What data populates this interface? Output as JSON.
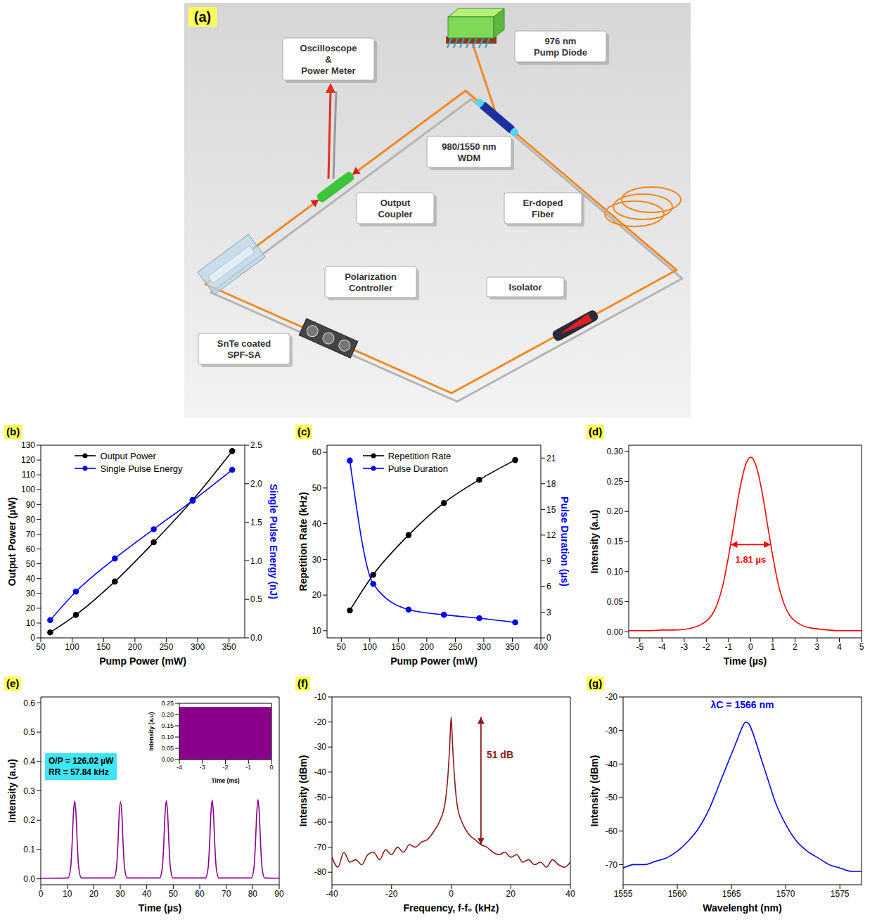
{
  "diagram": {
    "label": "(a)",
    "labels": [
      [
        "976 nm",
        "Pump Diode"
      ],
      [
        "Oscilloscope",
        "&",
        "Power Meter"
      ],
      [
        "980/1550 nm",
        "WDM"
      ],
      [
        "Output",
        "Coupler"
      ],
      [
        "Er-doped",
        "Fiber"
      ],
      [
        "SnTe coated",
        "SPF-SA"
      ],
      [
        "Polarization",
        "Controller"
      ],
      [
        "Isolator"
      ]
    ]
  },
  "chart_data": [
    {
      "panel": "(b)",
      "type": "line",
      "x_label": "Pump Power (mW)",
      "y_label": "Output Power (µW)",
      "y2_label": "Single Pulse Energy (nJ)",
      "x": [
        65,
        106,
        168,
        230,
        292,
        355
      ],
      "series": [
        {
          "name": "Output Power",
          "color": "#000000",
          "marker": "circle",
          "values": [
            3.7,
            15.5,
            38,
            64.5,
            93,
            126.02
          ]
        },
        {
          "name": "Single Pulse Energy",
          "color": "#0000ff",
          "marker": "circle",
          "axis": "y2",
          "values": [
            0.23,
            0.6,
            1.03,
            1.41,
            1.78,
            2.18
          ]
        }
      ],
      "xlim": [
        50,
        375
      ],
      "xticks": [
        50,
        100,
        150,
        200,
        250,
        300,
        350
      ],
      "ylim": [
        0,
        130
      ],
      "yticks": [
        0,
        10,
        20,
        30,
        40,
        50,
        60,
        70,
        80,
        90,
        100,
        110,
        120,
        130
      ],
      "y2lim": [
        0,
        2.5
      ],
      "y2ticks": [
        {
          "value": 0,
          "label": "0.0"
        },
        {
          "value": 0.5,
          "label": "0.5"
        },
        {
          "value": 1,
          "label": "1.0"
        },
        {
          "value": 1.5,
          "label": "1.5"
        },
        {
          "value": 2,
          "label": "2.0"
        },
        {
          "value": 2.5,
          "label": "2.5"
        }
      ],
      "legend": "upper left"
    },
    {
      "panel": "(c)",
      "type": "line",
      "x_label": "Pump Power (mW)",
      "y_label": "Repetition Rate (kHz)",
      "y2_label": "Pulse Duration (µs)",
      "x": [
        65,
        106,
        168,
        230,
        292,
        355
      ],
      "series": [
        {
          "name": "Repetition Rate",
          "color": "#000000",
          "marker": "circle",
          "values": [
            15.7,
            25.7,
            36.8,
            45.8,
            52.3,
            57.84
          ]
        },
        {
          "name": "Pulse Duration",
          "color": "#0000ff",
          "marker": "circle",
          "axis": "y2",
          "values": [
            20.7,
            6.3,
            3.3,
            2.7,
            2.3,
            1.81
          ]
        }
      ],
      "xlim": [
        25,
        400
      ],
      "xticks": [
        50,
        100,
        150,
        200,
        250,
        300,
        350,
        400
      ],
      "ylim": [
        8,
        62
      ],
      "yticks": [
        10,
        20,
        30,
        40,
        50,
        60
      ],
      "y2lim": [
        0,
        22.5
      ],
      "y2ticks": [
        0,
        3,
        6,
        9,
        12,
        15,
        18,
        21
      ],
      "legend": "upper left"
    },
    {
      "panel": "(d)",
      "type": "line",
      "x_label": "Time (µs)",
      "y_label": "Intensity (a.u)",
      "color": "#ff0000",
      "x": [
        -5.5,
        -5,
        -4.5,
        -4,
        -3.5,
        -3,
        -2.5,
        -2.25,
        -2,
        -1.75,
        -1.5,
        -1.25,
        -1,
        -0.75,
        -0.5,
        -0.25,
        0,
        0.25,
        0.5,
        0.75,
        1,
        1.25,
        1.5,
        1.75,
        2,
        2.25,
        2.5,
        3,
        3.5,
        4,
        4.5,
        5
      ],
      "values": [
        0.002,
        0.002,
        0.002,
        0.003,
        0.003,
        0.004,
        0.008,
        0.012,
        0.018,
        0.028,
        0.047,
        0.078,
        0.125,
        0.18,
        0.235,
        0.275,
        0.29,
        0.275,
        0.235,
        0.18,
        0.125,
        0.078,
        0.047,
        0.028,
        0.018,
        0.012,
        0.008,
        0.005,
        0.003,
        0.002,
        0.002,
        0.002
      ],
      "xlim": [
        -5.5,
        5
      ],
      "xticks": [
        -5,
        -4,
        -3,
        -2,
        -1,
        0,
        1,
        2,
        3,
        4,
        5
      ],
      "ylim": [
        -0.01,
        0.31
      ],
      "yticks": [
        {
          "value": 0,
          "label": "0.00"
        },
        {
          "value": 0.05,
          "label": "0.05"
        },
        {
          "value": 0.1,
          "label": "0.10"
        },
        {
          "value": 0.15,
          "label": "0.15"
        },
        {
          "value": 0.2,
          "label": "0.20"
        },
        {
          "value": 0.25,
          "label": "0.25"
        },
        {
          "value": 0.3,
          "label": "0.30"
        }
      ],
      "annotations": [
        {
          "text": "1.81 µs",
          "x": [
            -0.905,
            0.905
          ],
          "y": 0.145,
          "color": "#ff0000"
        }
      ]
    },
    {
      "panel": "(e)",
      "type": "line",
      "x_label": "Time (µs)",
      "y_label": "Intensity (a.u)",
      "color": "#8b008b",
      "x": [
        0,
        10.3,
        11.3,
        11.8,
        12.3,
        12.8,
        13.3,
        13.8,
        14.3,
        15.3,
        27.6,
        28.6,
        29.1,
        29.6,
        30.1,
        30.6,
        31.1,
        31.6,
        32.6,
        44.9,
        45.9,
        46.4,
        46.9,
        47.4,
        47.9,
        48.4,
        48.9,
        49.9,
        62.2,
        63.2,
        63.7,
        64.2,
        64.7,
        65.2,
        65.7,
        66.2,
        67.2,
        79.5,
        80.5,
        81.0,
        81.5,
        82.0,
        82.5,
        83.0,
        83.5,
        84.5,
        90
      ],
      "values": [
        0.002,
        0.003,
        0.04,
        0.115,
        0.22,
        0.265,
        0.22,
        0.115,
        0.04,
        0.003,
        0.003,
        0.04,
        0.115,
        0.22,
        0.263,
        0.22,
        0.115,
        0.04,
        0.003,
        0.003,
        0.04,
        0.115,
        0.22,
        0.266,
        0.22,
        0.115,
        0.04,
        0.003,
        0.003,
        0.04,
        0.115,
        0.22,
        0.268,
        0.22,
        0.115,
        0.04,
        0.003,
        0.003,
        0.04,
        0.115,
        0.22,
        0.27,
        0.22,
        0.115,
        0.04,
        0.003,
        0.002
      ],
      "xlim": [
        0,
        90
      ],
      "xticks": [
        0,
        10,
        20,
        30,
        40,
        50,
        60,
        70,
        80,
        90
      ],
      "ylim": [
        -0.02,
        0.62
      ],
      "yticks": [
        {
          "value": 0,
          "label": "0.0"
        },
        {
          "value": 0.1,
          "label": "0.1"
        },
        {
          "value": 0.2,
          "label": "0.2"
        },
        {
          "value": 0.3,
          "label": "0.3"
        },
        {
          "value": 0.4,
          "label": "0.4"
        },
        {
          "value": 0.5,
          "label": "0.5"
        },
        {
          "value": 0.6,
          "label": "0.6"
        }
      ],
      "text_box": [
        "O/P = 126.02 µW",
        "RR = 57.84 kHz"
      ],
      "inset": {
        "type": "area",
        "x_label": "Time (ms)",
        "y_label": "Intensity (a.u)",
        "color": "#8b008b",
        "x": [
          -4,
          0
        ],
        "values": [
          0.232,
          0.232
        ],
        "xlim": [
          -4,
          0
        ],
        "xticks": [
          -4,
          -3,
          -2,
          -1,
          0
        ],
        "ylim": [
          0,
          0.25
        ],
        "yticks": [
          {
            "value": 0,
            "label": "0.00"
          },
          {
            "value": 0.05,
            "label": "0.05"
          },
          {
            "value": 0.1,
            "label": "0.10"
          },
          {
            "value": 0.15,
            "label": "0.15"
          },
          {
            "value": 0.2,
            "label": "0.20"
          },
          {
            "value": 0.25,
            "label": "0.25"
          }
        ]
      }
    },
    {
      "panel": "(f)",
      "type": "line",
      "x_label": "Frequency, f-f₀ (kHz)",
      "y_label": "Intensity (dBm)",
      "color": "#8b1a1a",
      "x": [
        -40,
        -38,
        -36,
        -34,
        -32,
        -30,
        -28,
        -26,
        -24,
        -22,
        -20,
        -18,
        -16,
        -14,
        -12,
        -10,
        -8,
        -6,
        -4,
        -2,
        -1,
        -0.5,
        0,
        0.5,
        1,
        2,
        4,
        6,
        8,
        10,
        12,
        14,
        16,
        18,
        20,
        22,
        24,
        26,
        28,
        30,
        32,
        34,
        36,
        38,
        40
      ],
      "values": [
        -74,
        -78,
        -72,
        -76,
        -75,
        -77,
        -73,
        -72,
        -75,
        -71,
        -73,
        -70,
        -72,
        -69,
        -70,
        -68,
        -67,
        -64,
        -60,
        -52,
        -40,
        -30,
        -18,
        -30,
        -40,
        -53,
        -61,
        -65,
        -67,
        -69,
        -70,
        -72,
        -73,
        -72,
        -74,
        -73,
        -76,
        -75,
        -77,
        -76,
        -78,
        -75,
        -77,
        -78,
        -76
      ],
      "xlim": [
        -40,
        40
      ],
      "xticks": [
        -40,
        -20,
        0,
        20,
        40
      ],
      "ylim": [
        -85,
        -10
      ],
      "yticks": [
        -80,
        -70,
        -60,
        -50,
        -40,
        -30,
        -20,
        -10
      ],
      "annotations": [
        {
          "text": "51 dB",
          "x": 10,
          "y": [
            -69,
            -18
          ],
          "color": "#8b1a1a"
        }
      ]
    },
    {
      "panel": "(g)",
      "type": "line",
      "x_label": "Wavelenght (nm)",
      "y_label": "Intensity (dBm)",
      "color": "#0000ff",
      "x": [
        1555,
        1556,
        1557,
        1558,
        1559,
        1560,
        1561,
        1562,
        1563,
        1564,
        1565,
        1565.5,
        1566,
        1566.3,
        1566.6,
        1567,
        1567.5,
        1568,
        1568.5,
        1569,
        1570,
        1571,
        1572,
        1573,
        1574,
        1575,
        1576,
        1577
      ],
      "values": [
        -71,
        -70,
        -70,
        -69,
        -68,
        -66,
        -63,
        -59,
        -53,
        -45,
        -37,
        -33,
        -29,
        -27.5,
        -28,
        -31,
        -36,
        -41,
        -46,
        -51,
        -58,
        -63,
        -66,
        -68,
        -70,
        -71,
        -72,
        -72
      ],
      "xlim": [
        1555,
        1577
      ],
      "xticks": [
        1555,
        1560,
        1565,
        1570,
        1575
      ],
      "ylim": [
        -76,
        -20
      ],
      "yticks": [
        -70,
        -60,
        -50,
        -40,
        -30,
        -20
      ],
      "annotations": [
        {
          "text": "λC = 1566 nm",
          "x": 1566,
          "y": -22.5,
          "color": "#0000ff"
        }
      ]
    }
  ]
}
